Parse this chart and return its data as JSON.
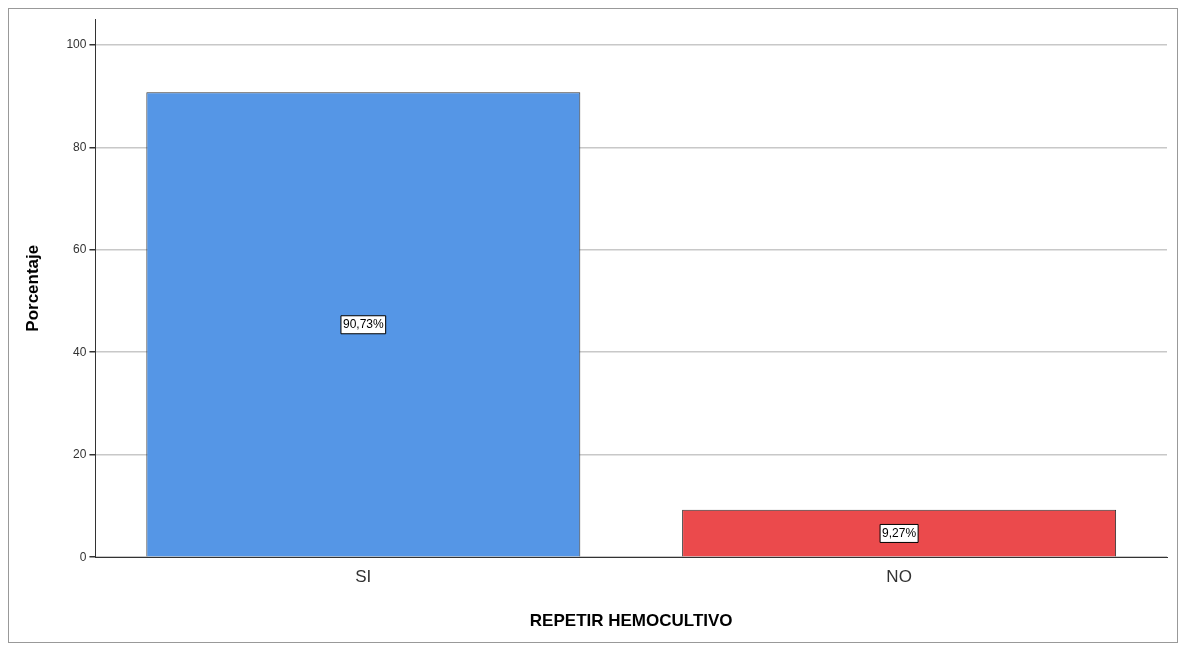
{
  "chart_data": {
    "type": "bar",
    "xlabel": "REPETIR HEMOCULTIVO",
    "ylabel": "Porcentaje",
    "categories": [
      "SI",
      "NO"
    ],
    "values": [
      90.73,
      9.27
    ],
    "colors": [
      "#5596e6",
      "#eb4a4c"
    ],
    "value_labels": [
      "90,73%",
      "9,27%"
    ],
    "ylim": [
      0,
      105
    ],
    "yticks": [
      0,
      20,
      40,
      60,
      80,
      100
    ],
    "grid": "y",
    "legend": false
  }
}
